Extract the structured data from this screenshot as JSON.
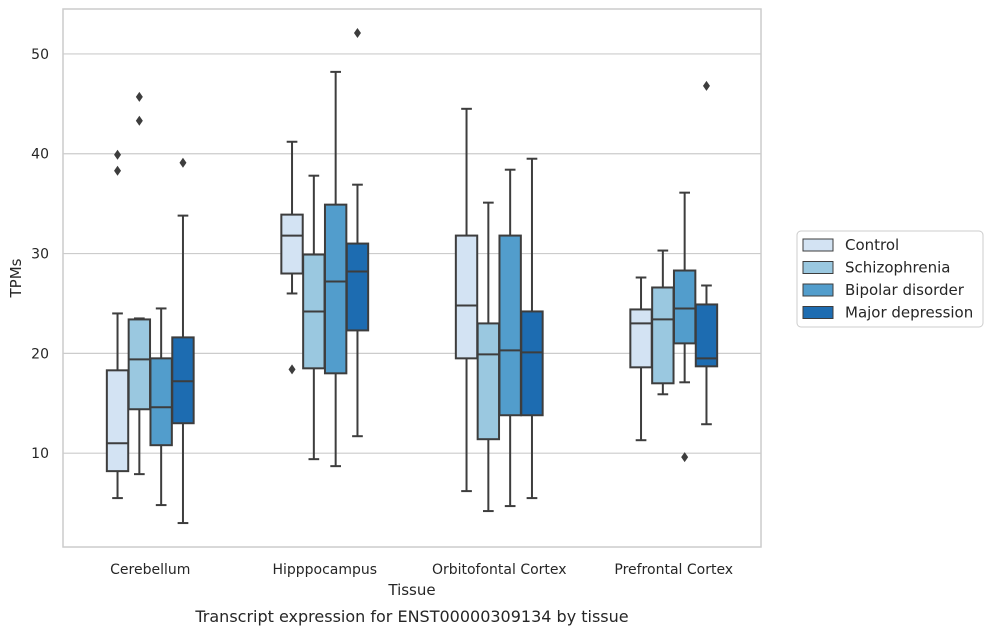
{
  "chart_data": {
    "type": "box",
    "title": "",
    "caption": "Transcript expression for ENST00000309134 by tissue",
    "xlabel": "Tissue",
    "ylabel": "TPMs",
    "ylim": [
      0.6,
      54.5
    ],
    "yticks": [
      10,
      20,
      30,
      40,
      50
    ],
    "grid": "horizontal",
    "legend_position": "right",
    "categories": [
      "Cerebellum",
      "Hipppocampus",
      "Orbitofontal Cortex",
      "Prefrontal Cortex"
    ],
    "series": [
      {
        "name": "Control",
        "color": "#d3e3f3",
        "boxes": [
          {
            "whisker_low": 5.5,
            "q1": 8.2,
            "median": 11.0,
            "q3": 18.3,
            "whisker_high": 24.0,
            "outliers": [
              38.3,
              39.9
            ]
          },
          {
            "whisker_low": 26.0,
            "q1": 28.0,
            "median": 31.8,
            "q3": 33.9,
            "whisker_high": 41.2,
            "outliers": [
              18.4
            ]
          },
          {
            "whisker_low": 6.2,
            "q1": 19.5,
            "median": 24.8,
            "q3": 31.8,
            "whisker_high": 44.5,
            "outliers": []
          },
          {
            "whisker_low": 11.3,
            "q1": 18.6,
            "median": 23.0,
            "q3": 24.4,
            "whisker_high": 27.6,
            "outliers": []
          }
        ]
      },
      {
        "name": "Schizophrenia",
        "color": "#9ac8e0",
        "boxes": [
          {
            "whisker_low": 7.9,
            "q1": 14.4,
            "median": 19.4,
            "q3": 23.4,
            "whisker_high": 23.5,
            "outliers": [
              43.3,
              45.7
            ]
          },
          {
            "whisker_low": 9.4,
            "q1": 18.5,
            "median": 24.2,
            "q3": 29.9,
            "whisker_high": 37.8,
            "outliers": []
          },
          {
            "whisker_low": 4.2,
            "q1": 11.4,
            "median": 19.9,
            "q3": 23.0,
            "whisker_high": 35.1,
            "outliers": []
          },
          {
            "whisker_low": 15.9,
            "q1": 17.0,
            "median": 23.4,
            "q3": 26.6,
            "whisker_high": 30.3,
            "outliers": []
          }
        ]
      },
      {
        "name": "Bipolar disorder",
        "color": "#529dcc",
        "boxes": [
          {
            "whisker_low": 4.8,
            "q1": 10.8,
            "median": 14.6,
            "q3": 19.5,
            "whisker_high": 24.5,
            "outliers": []
          },
          {
            "whisker_low": 8.7,
            "q1": 18.0,
            "median": 27.2,
            "q3": 34.9,
            "whisker_high": 48.2,
            "outliers": []
          },
          {
            "whisker_low": 4.7,
            "q1": 13.8,
            "median": 20.3,
            "q3": 31.8,
            "whisker_high": 38.4,
            "outliers": []
          },
          {
            "whisker_low": 17.1,
            "q1": 21.0,
            "median": 24.5,
            "q3": 28.3,
            "whisker_high": 36.1,
            "outliers": [
              9.6
            ]
          }
        ]
      },
      {
        "name": "Major depression",
        "color": "#1d6cb1",
        "boxes": [
          {
            "whisker_low": 3.0,
            "q1": 13.0,
            "median": 17.2,
            "q3": 21.6,
            "whisker_high": 33.8,
            "outliers": [
              39.1
            ]
          },
          {
            "whisker_low": 11.7,
            "q1": 22.3,
            "median": 28.2,
            "q3": 31.0,
            "whisker_high": 36.9,
            "outliers": [
              52.1
            ]
          },
          {
            "whisker_low": 5.5,
            "q1": 13.8,
            "median": 20.1,
            "q3": 24.2,
            "whisker_high": 39.5,
            "outliers": []
          },
          {
            "whisker_low": 12.9,
            "q1": 18.7,
            "median": 19.5,
            "q3": 24.9,
            "whisker_high": 26.8,
            "outliers": [
              46.8
            ]
          }
        ]
      }
    ]
  }
}
